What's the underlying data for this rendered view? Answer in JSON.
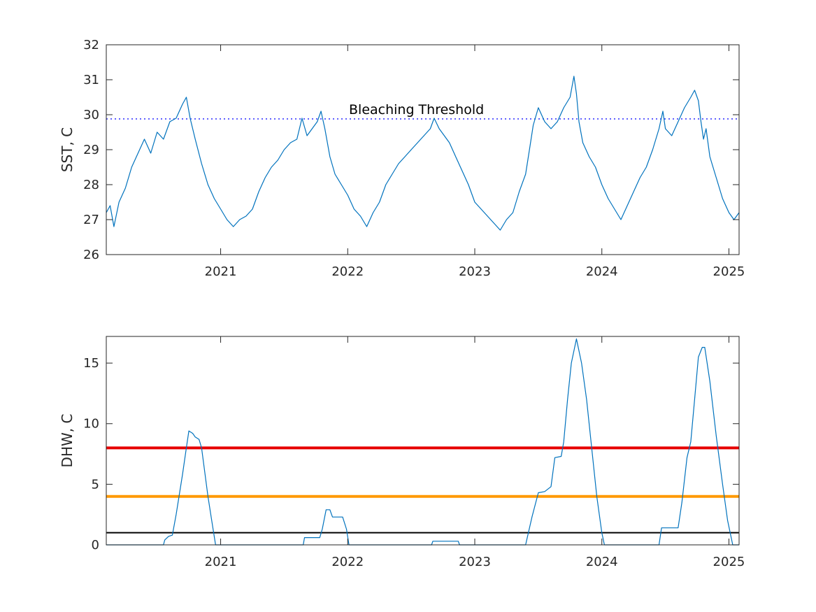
{
  "chart_data": [
    {
      "type": "line",
      "ylabel": "SST, C",
      "xlim": [
        2020.1,
        2025.08
      ],
      "ylim": [
        26,
        32
      ],
      "x_ticks": [
        2021,
        2022,
        2023,
        2024,
        2025
      ],
      "x_tick_labels": [
        "2021",
        "2022",
        "2023",
        "2024",
        "2025"
      ],
      "y_ticks": [
        26,
        27,
        28,
        29,
        30,
        31,
        32
      ],
      "y_tick_labels": [
        "26",
        "27",
        "28",
        "29",
        "30",
        "31",
        "32"
      ],
      "threshold": {
        "value": 29.88,
        "label": "Bleaching Threshold",
        "color": "#0000ff",
        "style": "dotted"
      },
      "series": [
        {
          "color": "#0072bd",
          "points": [
            [
              2020.1,
              27.2
            ],
            [
              2020.13,
              27.4
            ],
            [
              2020.16,
              26.8
            ],
            [
              2020.2,
              27.5
            ],
            [
              2020.25,
              27.9
            ],
            [
              2020.3,
              28.5
            ],
            [
              2020.35,
              28.9
            ],
            [
              2020.4,
              29.3
            ],
            [
              2020.45,
              28.9
            ],
            [
              2020.5,
              29.5
            ],
            [
              2020.55,
              29.3
            ],
            [
              2020.6,
              29.8
            ],
            [
              2020.65,
              29.9
            ],
            [
              2020.7,
              30.3
            ],
            [
              2020.73,
              30.5
            ],
            [
              2020.76,
              29.9
            ],
            [
              2020.8,
              29.3
            ],
            [
              2020.85,
              28.6
            ],
            [
              2020.9,
              28.0
            ],
            [
              2020.95,
              27.6
            ],
            [
              2021.0,
              27.3
            ],
            [
              2021.05,
              27.0
            ],
            [
              2021.1,
              26.8
            ],
            [
              2021.15,
              27.0
            ],
            [
              2021.2,
              27.1
            ],
            [
              2021.25,
              27.3
            ],
            [
              2021.3,
              27.8
            ],
            [
              2021.35,
              28.2
            ],
            [
              2021.4,
              28.5
            ],
            [
              2021.45,
              28.7
            ],
            [
              2021.5,
              29.0
            ],
            [
              2021.55,
              29.2
            ],
            [
              2021.6,
              29.3
            ],
            [
              2021.64,
              29.9
            ],
            [
              2021.68,
              29.4
            ],
            [
              2021.72,
              29.6
            ],
            [
              2021.76,
              29.8
            ],
            [
              2021.79,
              30.1
            ],
            [
              2021.82,
              29.6
            ],
            [
              2021.86,
              28.8
            ],
            [
              2021.9,
              28.3
            ],
            [
              2021.95,
              28.0
            ],
            [
              2022.0,
              27.7
            ],
            [
              2022.05,
              27.3
            ],
            [
              2022.1,
              27.1
            ],
            [
              2022.15,
              26.8
            ],
            [
              2022.2,
              27.2
            ],
            [
              2022.25,
              27.5
            ],
            [
              2022.3,
              28.0
            ],
            [
              2022.35,
              28.3
            ],
            [
              2022.4,
              28.6
            ],
            [
              2022.45,
              28.8
            ],
            [
              2022.5,
              29.0
            ],
            [
              2022.55,
              29.2
            ],
            [
              2022.6,
              29.4
            ],
            [
              2022.65,
              29.6
            ],
            [
              2022.68,
              29.9
            ],
            [
              2022.72,
              29.6
            ],
            [
              2022.76,
              29.4
            ],
            [
              2022.8,
              29.2
            ],
            [
              2022.85,
              28.8
            ],
            [
              2022.9,
              28.4
            ],
            [
              2022.95,
              28.0
            ],
            [
              2023.0,
              27.5
            ],
            [
              2023.05,
              27.3
            ],
            [
              2023.1,
              27.1
            ],
            [
              2023.15,
              26.9
            ],
            [
              2023.2,
              26.7
            ],
            [
              2023.25,
              27.0
            ],
            [
              2023.3,
              27.2
            ],
            [
              2023.35,
              27.8
            ],
            [
              2023.4,
              28.3
            ],
            [
              2023.43,
              29.0
            ],
            [
              2023.46,
              29.7
            ],
            [
              2023.5,
              30.2
            ],
            [
              2023.55,
              29.8
            ],
            [
              2023.6,
              29.6
            ],
            [
              2023.65,
              29.8
            ],
            [
              2023.7,
              30.2
            ],
            [
              2023.75,
              30.5
            ],
            [
              2023.78,
              31.1
            ],
            [
              2023.8,
              30.6
            ],
            [
              2023.82,
              29.8
            ],
            [
              2023.85,
              29.2
            ],
            [
              2023.9,
              28.8
            ],
            [
              2023.95,
              28.5
            ],
            [
              2024.0,
              28.0
            ],
            [
              2024.05,
              27.6
            ],
            [
              2024.1,
              27.3
            ],
            [
              2024.15,
              27.0
            ],
            [
              2024.2,
              27.4
            ],
            [
              2024.25,
              27.8
            ],
            [
              2024.3,
              28.2
            ],
            [
              2024.35,
              28.5
            ],
            [
              2024.4,
              29.0
            ],
            [
              2024.45,
              29.6
            ],
            [
              2024.48,
              30.1
            ],
            [
              2024.5,
              29.6
            ],
            [
              2024.55,
              29.4
            ],
            [
              2024.6,
              29.8
            ],
            [
              2024.65,
              30.2
            ],
            [
              2024.7,
              30.5
            ],
            [
              2024.73,
              30.7
            ],
            [
              2024.76,
              30.4
            ],
            [
              2024.78,
              29.8
            ],
            [
              2024.8,
              29.3
            ],
            [
              2024.82,
              29.6
            ],
            [
              2024.85,
              28.8
            ],
            [
              2024.9,
              28.2
            ],
            [
              2024.95,
              27.6
            ],
            [
              2025.0,
              27.2
            ],
            [
              2025.04,
              27.0
            ],
            [
              2025.08,
              27.2
            ]
          ]
        }
      ]
    },
    {
      "type": "line",
      "ylabel": "DHW, C",
      "xlim": [
        2020.1,
        2025.08
      ],
      "ylim": [
        0,
        17.2
      ],
      "x_ticks": [
        2021,
        2022,
        2023,
        2024,
        2025
      ],
      "x_tick_labels": [
        "2021",
        "2022",
        "2023",
        "2024",
        "2025"
      ],
      "y_ticks": [
        0,
        5,
        10,
        15
      ],
      "y_tick_labels": [
        "0",
        "5",
        "10",
        "15"
      ],
      "reference_lines": [
        {
          "value": 8,
          "color": "#e60000",
          "width": "thick"
        },
        {
          "value": 4,
          "color": "#ff9900",
          "width": "thick"
        },
        {
          "value": 1,
          "color": "#000000",
          "width": "normal"
        }
      ],
      "series": [
        {
          "color": "#0072bd",
          "points": [
            [
              2020.1,
              0
            ],
            [
              2020.55,
              0
            ],
            [
              2020.56,
              0.4
            ],
            [
              2020.59,
              0.7
            ],
            [
              2020.62,
              0.8
            ],
            [
              2020.65,
              2.5
            ],
            [
              2020.7,
              5.8
            ],
            [
              2020.73,
              8.0
            ],
            [
              2020.75,
              9.4
            ],
            [
              2020.78,
              9.2
            ],
            [
              2020.8,
              8.9
            ],
            [
              2020.83,
              8.7
            ],
            [
              2020.85,
              8.0
            ],
            [
              2020.9,
              4.0
            ],
            [
              2020.93,
              2.0
            ],
            [
              2020.96,
              0
            ],
            [
              2021.65,
              0
            ],
            [
              2021.66,
              0.6
            ],
            [
              2021.78,
              0.6
            ],
            [
              2021.8,
              1.3
            ],
            [
              2021.83,
              2.9
            ],
            [
              2021.86,
              2.9
            ],
            [
              2021.88,
              2.3
            ],
            [
              2021.96,
              2.3
            ],
            [
              2021.99,
              1.3
            ],
            [
              2022.01,
              0
            ],
            [
              2022.66,
              0
            ],
            [
              2022.67,
              0.3
            ],
            [
              2022.87,
              0.3
            ],
            [
              2022.88,
              0
            ],
            [
              2023.4,
              0
            ],
            [
              2023.45,
              2.3
            ],
            [
              2023.5,
              4.3
            ],
            [
              2023.55,
              4.4
            ],
            [
              2023.6,
              4.8
            ],
            [
              2023.63,
              7.2
            ],
            [
              2023.68,
              7.3
            ],
            [
              2023.7,
              8.5
            ],
            [
              2023.73,
              12.0
            ],
            [
              2023.76,
              15.0
            ],
            [
              2023.8,
              17.0
            ],
            [
              2023.84,
              15.0
            ],
            [
              2023.88,
              12.0
            ],
            [
              2023.92,
              8.0
            ],
            [
              2023.96,
              4.0
            ],
            [
              2024.0,
              1.0
            ],
            [
              2024.02,
              0
            ],
            [
              2024.45,
              0
            ],
            [
              2024.47,
              1.4
            ],
            [
              2024.6,
              1.4
            ],
            [
              2024.63,
              3.5
            ],
            [
              2024.67,
              7.2
            ],
            [
              2024.7,
              8.5
            ],
            [
              2024.73,
              12.0
            ],
            [
              2024.76,
              15.5
            ],
            [
              2024.79,
              16.3
            ],
            [
              2024.81,
              16.3
            ],
            [
              2024.85,
              13.5
            ],
            [
              2024.9,
              9.0
            ],
            [
              2024.95,
              5.0
            ],
            [
              2024.99,
              2.0
            ],
            [
              2025.03,
              0
            ],
            [
              2025.08,
              0
            ]
          ]
        }
      ]
    }
  ]
}
